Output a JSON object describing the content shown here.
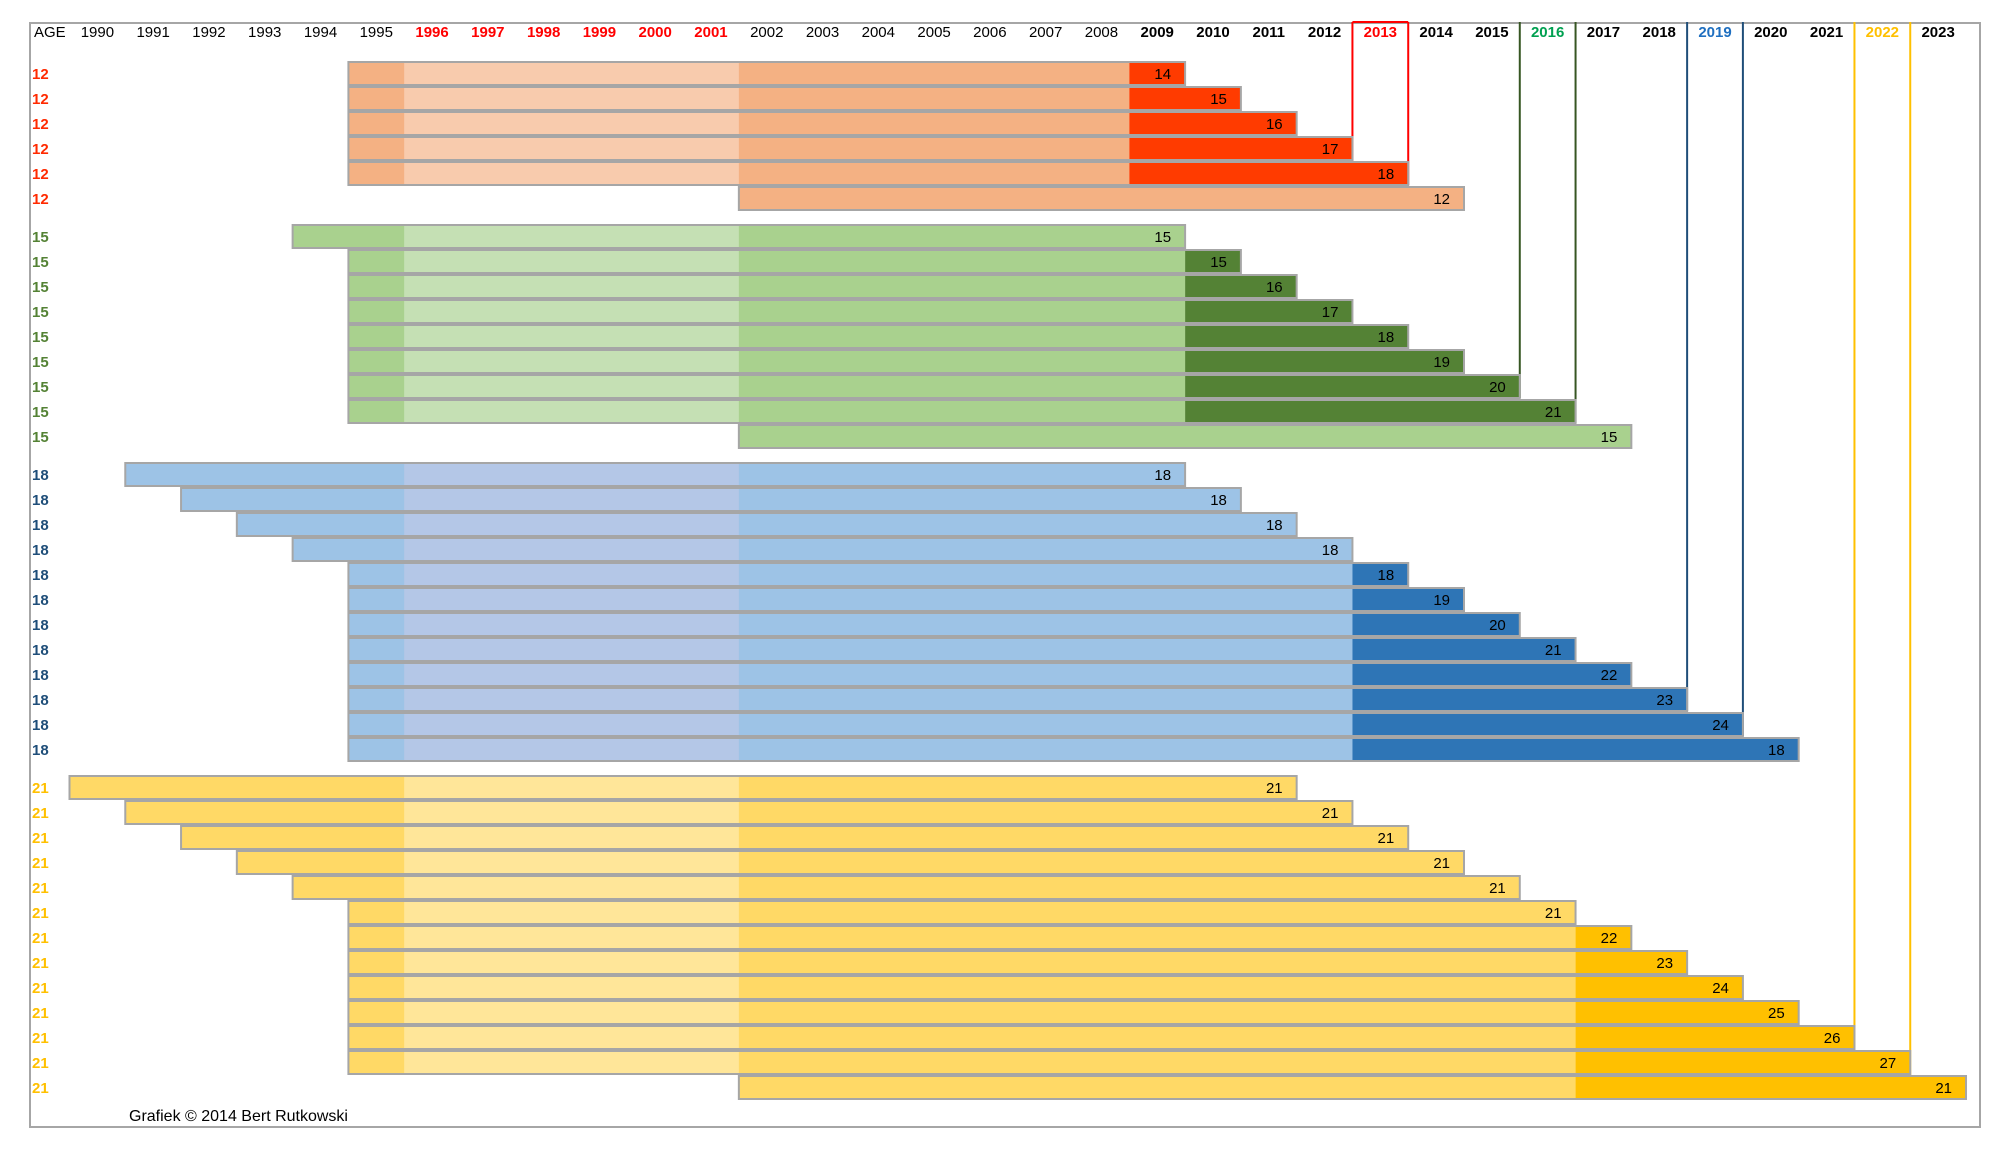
{
  "chart_data": {
    "type": "bar",
    "subtype": "timeline-gantt",
    "title": "",
    "age_header": "AGE",
    "years": [
      1990,
      1991,
      1992,
      1993,
      1994,
      1995,
      1996,
      1997,
      1998,
      1999,
      2000,
      2001,
      2002,
      2003,
      2004,
      2005,
      2006,
      2007,
      2008,
      2009,
      2010,
      2011,
      2012,
      2013,
      2014,
      2015,
      2016,
      2017,
      2018,
      2019,
      2020,
      2021,
      2022,
      2023
    ],
    "year_label_colors": {
      "red": [
        1996,
        1997,
        1998,
        1999,
        2000,
        2001,
        2013
      ],
      "green": [
        2016
      ],
      "blue": [
        2019
      ],
      "gold": [
        2022
      ],
      "bold": [
        2009,
        2010,
        2011,
        2012,
        2014,
        2015,
        2017,
        2018,
        2020,
        2021,
        2023
      ]
    },
    "colors": {
      "red": "#ff0000",
      "green": "#00a050",
      "blue": "#1f6fc0",
      "gold": "#ffc000",
      "age12_text": "#ff2a00",
      "age15_text": "#548235",
      "age18_text": "#1f4e79",
      "age21_text": "#ffc000"
    },
    "marker_lines": [
      {
        "year": 2013,
        "color": "#ff0000",
        "from_row": 0,
        "to_row": 4,
        "box": true
      },
      {
        "year": 2015,
        "color": "#375623",
        "from_row": 6,
        "to_row": 12
      },
      {
        "year": 2016,
        "color": "#375623",
        "from_row": 6,
        "to_row": 13
      },
      {
        "year": 2018,
        "color": "#1f4e79",
        "from_row": 15,
        "to_row": 24
      },
      {
        "year": 2019,
        "color": "#1f4e79",
        "from_row": 15,
        "to_row": 25
      },
      {
        "year": 2021,
        "color": "#ffc000",
        "from_row": 27,
        "to_row": 38
      },
      {
        "year": 2022,
        "color": "#ffc000",
        "from_row": 27,
        "to_row": 39
      }
    ],
    "groups": [
      {
        "age": "12",
        "palette": {
          "base": "#f4b183",
          "mid": "#f8cbad",
          "end": "#ff3b00",
          "stroke": "#a6a6a6"
        },
        "rows": [
          {
            "start": 1995,
            "switch": 2009,
            "end": 2010,
            "label": "14"
          },
          {
            "start": 1995,
            "switch": 2009,
            "end": 2011,
            "label": "15"
          },
          {
            "start": 1995,
            "switch": 2009,
            "end": 2012,
            "label": "16"
          },
          {
            "start": 1995,
            "switch": 2009,
            "end": 2013,
            "label": "17"
          },
          {
            "start": 1995,
            "switch": 2009,
            "end": 2014,
            "label": "18"
          },
          {
            "start": 2002,
            "switch": null,
            "end": 2015,
            "label": "12"
          }
        ]
      },
      {
        "age": "15",
        "palette": {
          "base": "#a9d18e",
          "mid": "#c5e0b4",
          "end": "#548235",
          "stroke": "#a6a6a6"
        },
        "rows": [
          {
            "start": 1994,
            "switch": null,
            "end": 2010,
            "label": "15"
          },
          {
            "start": 1995,
            "switch": 2010,
            "end": 2011,
            "label": "15"
          },
          {
            "start": 1995,
            "switch": 2010,
            "end": 2012,
            "label": "16"
          },
          {
            "start": 1995,
            "switch": 2010,
            "end": 2013,
            "label": "17"
          },
          {
            "start": 1995,
            "switch": 2010,
            "end": 2014,
            "label": "18"
          },
          {
            "start": 1995,
            "switch": 2010,
            "end": 2015,
            "label": "19"
          },
          {
            "start": 1995,
            "switch": 2010,
            "end": 2016,
            "label": "20"
          },
          {
            "start": 1995,
            "switch": 2010,
            "end": 2017,
            "label": "21"
          },
          {
            "start": 2002,
            "switch": null,
            "end": 2018,
            "label": "15"
          }
        ]
      },
      {
        "age": "18",
        "palette": {
          "base": "#9dc3e6",
          "mid": "#b4c7e7",
          "end": "#2e75b6",
          "stroke": "#a6a6a6"
        },
        "rows": [
          {
            "start": 1991,
            "switch": null,
            "end": 2010,
            "label": "18"
          },
          {
            "start": 1992,
            "switch": null,
            "end": 2011,
            "label": "18"
          },
          {
            "start": 1993,
            "switch": null,
            "end": 2012,
            "label": "18"
          },
          {
            "start": 1994,
            "switch": null,
            "end": 2013,
            "label": "18"
          },
          {
            "start": 1995,
            "switch": 2013,
            "end": 2014,
            "label": "18"
          },
          {
            "start": 1995,
            "switch": 2013,
            "end": 2015,
            "label": "19"
          },
          {
            "start": 1995,
            "switch": 2013,
            "end": 2016,
            "label": "20"
          },
          {
            "start": 1995,
            "switch": 2013,
            "end": 2017,
            "label": "21"
          },
          {
            "start": 1995,
            "switch": 2013,
            "end": 2018,
            "label": "22"
          },
          {
            "start": 1995,
            "switch": 2013,
            "end": 2019,
            "label": "23"
          },
          {
            "start": 1995,
            "switch": 2013,
            "end": 2020,
            "label": "24"
          },
          {
            "start": 1995,
            "switch": 2013,
            "end": 2021,
            "label": "18"
          }
        ]
      },
      {
        "age": "21",
        "palette": {
          "base": "#ffd966",
          "mid": "#ffe699",
          "end": "#ffc000",
          "stroke": "#a6a6a6"
        },
        "rows": [
          {
            "start": 1990,
            "switch": null,
            "end": 2012,
            "label": "21"
          },
          {
            "start": 1991,
            "switch": null,
            "end": 2013,
            "label": "21"
          },
          {
            "start": 1992,
            "switch": null,
            "end": 2014,
            "label": "21"
          },
          {
            "start": 1993,
            "switch": null,
            "end": 2015,
            "label": "21"
          },
          {
            "start": 1994,
            "switch": null,
            "end": 2016,
            "label": "21"
          },
          {
            "start": 1995,
            "switch": null,
            "end": 2017,
            "label": "21"
          },
          {
            "start": 1995,
            "switch": 2017,
            "end": 2018,
            "label": "22"
          },
          {
            "start": 1995,
            "switch": 2017,
            "end": 2019,
            "label": "23"
          },
          {
            "start": 1995,
            "switch": 2017,
            "end": 2020,
            "label": "24"
          },
          {
            "start": 1995,
            "switch": 2017,
            "end": 2021,
            "label": "25"
          },
          {
            "start": 1995,
            "switch": 2017,
            "end": 2022,
            "label": "26"
          },
          {
            "start": 1995,
            "switch": 2017,
            "end": 2023,
            "label": "27"
          },
          {
            "start": 2002,
            "switch": 2017,
            "end": 2024,
            "label": "21"
          }
        ]
      }
    ],
    "credit": "Grafiek © 2014 Bert Rutkowski"
  }
}
